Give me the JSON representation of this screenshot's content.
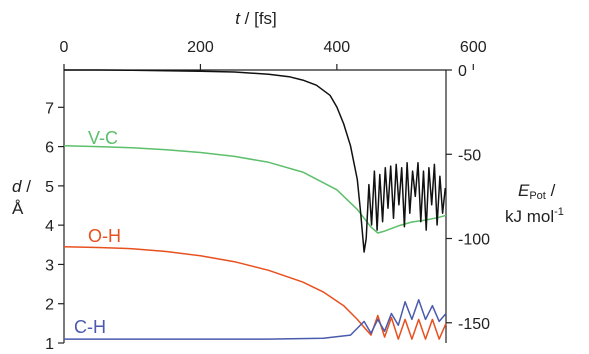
{
  "chart_data": {
    "type": "line",
    "x_axis": {
      "label_main": "t",
      "label_unit": " / [fs]",
      "range": [
        0,
        560
      ],
      "ticks": [
        0,
        200,
        400,
        600
      ]
    },
    "y_left": {
      "label_line1": "d /",
      "label_line2": "Å",
      "range": [
        1,
        7.95
      ],
      "ticks": [
        1,
        2,
        3,
        4,
        5,
        6,
        7
      ]
    },
    "y_right": {
      "label_main": "E",
      "label_sub": "Pot",
      "label_after": " /",
      "label_line2_main": "kJ mol",
      "label_line2_sup": "-1",
      "range": [
        -162,
        0
      ],
      "ticks": [
        0,
        -50,
        -100,
        -150
      ]
    },
    "series": [
      {
        "name": "V-C",
        "axis": "left",
        "color": "#5cbf6a",
        "points": [
          [
            0,
            6.02
          ],
          [
            50,
            6.0
          ],
          [
            100,
            5.97
          ],
          [
            150,
            5.92
          ],
          [
            200,
            5.85
          ],
          [
            250,
            5.75
          ],
          [
            300,
            5.6
          ],
          [
            350,
            5.35
          ],
          [
            400,
            4.9
          ],
          [
            430,
            4.4
          ],
          [
            450,
            3.95
          ],
          [
            460,
            3.8
          ],
          [
            470,
            3.85
          ],
          [
            490,
            3.98
          ],
          [
            510,
            4.08
          ],
          [
            530,
            4.13
          ],
          [
            550,
            4.2
          ],
          [
            560,
            4.25
          ]
        ]
      },
      {
        "name": "O-H",
        "axis": "left",
        "color": "#e8501f",
        "points": [
          [
            0,
            3.45
          ],
          [
            50,
            3.43
          ],
          [
            100,
            3.4
          ],
          [
            150,
            3.33
          ],
          [
            200,
            3.22
          ],
          [
            250,
            3.07
          ],
          [
            300,
            2.85
          ],
          [
            350,
            2.55
          ],
          [
            380,
            2.3
          ],
          [
            410,
            1.95
          ],
          [
            430,
            1.6
          ],
          [
            440,
            1.4
          ],
          [
            450,
            1.2
          ],
          [
            460,
            1.7
          ],
          [
            470,
            1.15
          ],
          [
            480,
            1.65
          ],
          [
            490,
            1.1
          ],
          [
            500,
            1.6
          ],
          [
            510,
            1.1
          ],
          [
            520,
            1.6
          ],
          [
            530,
            1.1
          ],
          [
            540,
            1.6
          ],
          [
            550,
            1.1
          ],
          [
            560,
            1.5
          ]
        ]
      },
      {
        "name": "C-H",
        "axis": "left",
        "color": "#4a5aad",
        "points": [
          [
            0,
            1.1
          ],
          [
            100,
            1.1
          ],
          [
            200,
            1.1
          ],
          [
            300,
            1.1
          ],
          [
            380,
            1.12
          ],
          [
            420,
            1.2
          ],
          [
            440,
            1.55
          ],
          [
            450,
            1.25
          ],
          [
            460,
            1.6
          ],
          [
            470,
            1.3
          ],
          [
            480,
            1.75
          ],
          [
            490,
            1.45
          ],
          [
            500,
            2.05
          ],
          [
            510,
            1.6
          ],
          [
            520,
            2.1
          ],
          [
            530,
            1.6
          ],
          [
            540,
            1.95
          ],
          [
            550,
            1.55
          ],
          [
            560,
            1.75
          ]
        ]
      },
      {
        "name": "",
        "axis": "right",
        "color": "#111111",
        "points": [
          [
            0,
            0
          ],
          [
            50,
            0
          ],
          [
            100,
            -0.2
          ],
          [
            150,
            -0.4
          ],
          [
            200,
            -0.7
          ],
          [
            250,
            -1.2
          ],
          [
            300,
            -2.5
          ],
          [
            330,
            -4
          ],
          [
            350,
            -6
          ],
          [
            370,
            -9
          ],
          [
            390,
            -15
          ],
          [
            400,
            -22
          ],
          [
            410,
            -32
          ],
          [
            420,
            -45
          ],
          [
            430,
            -65
          ],
          [
            435,
            -85
          ],
          [
            440,
            -108
          ],
          [
            443,
            -100
          ],
          [
            447,
            -68
          ],
          [
            451,
            -92
          ],
          [
            455,
            -60
          ],
          [
            459,
            -95
          ],
          [
            463,
            -62
          ],
          [
            467,
            -90
          ],
          [
            471,
            -58
          ],
          [
            475,
            -82
          ],
          [
            479,
            -57
          ],
          [
            483,
            -88
          ],
          [
            487,
            -56
          ],
          [
            491,
            -80
          ],
          [
            495,
            -58
          ],
          [
            499,
            -93
          ],
          [
            503,
            -55
          ],
          [
            507,
            -85
          ],
          [
            511,
            -60
          ],
          [
            515,
            -75
          ],
          [
            519,
            -55
          ],
          [
            523,
            -90
          ],
          [
            527,
            -60
          ],
          [
            531,
            -95
          ],
          [
            535,
            -58
          ],
          [
            539,
            -80
          ],
          [
            543,
            -56
          ],
          [
            547,
            -92
          ],
          [
            551,
            -63
          ],
          [
            555,
            -85
          ],
          [
            559,
            -70
          ]
        ]
      }
    ]
  }
}
